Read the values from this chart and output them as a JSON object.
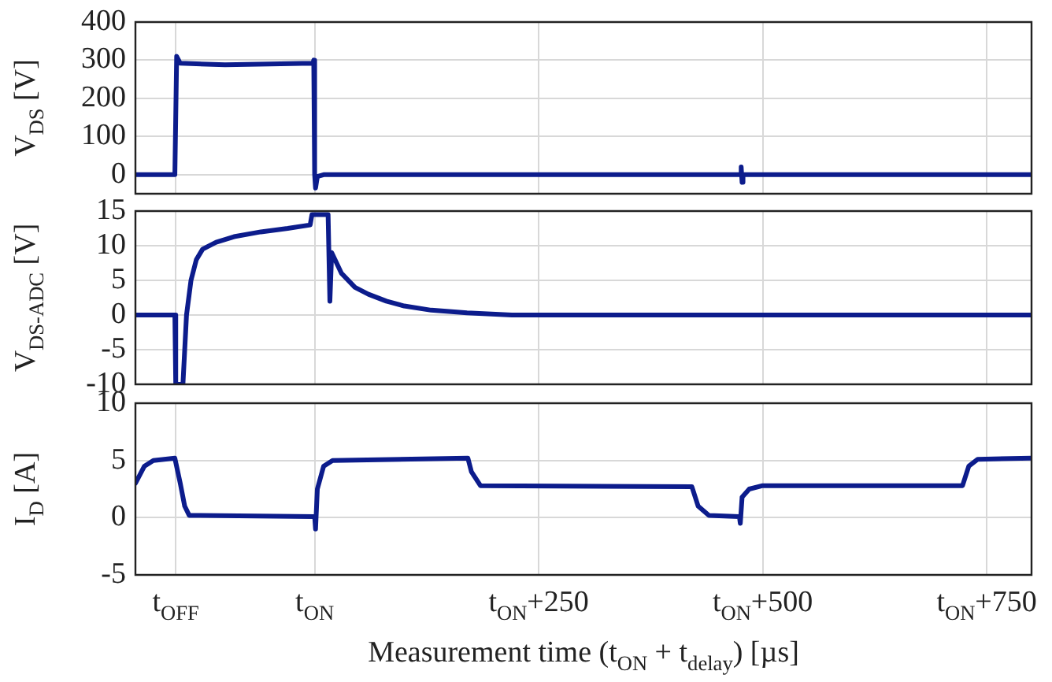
{
  "chart_data": [
    {
      "type": "line",
      "ylabel": "V$_{DS}$ [V]",
      "xlim": [
        -200,
        800
      ],
      "ylim": [
        -50,
        400
      ],
      "yticks": [
        0,
        100,
        200,
        300,
        400
      ],
      "xticks": [
        -155,
        0,
        250,
        500,
        750
      ],
      "grid": true,
      "tick_labels": "y",
      "series": [
        {
          "color": "#0c1c8c",
          "x": [
            -200,
            -156,
            -154,
            -150,
            -100,
            -50,
            -2,
            -1,
            0,
            1,
            3,
            10,
            475,
            476,
            477,
            478,
            800
          ],
          "values": [
            0,
            0,
            310,
            292,
            288,
            290,
            292,
            300,
            0,
            -35,
            -5,
            0,
            0,
            20,
            -20,
            0,
            0
          ]
        }
      ]
    },
    {
      "type": "line",
      "ylabel": "V$_{DS-ADC}$ [V]",
      "xlim": [
        -200,
        800
      ],
      "ylim": [
        -10,
        15
      ],
      "yticks": [
        -10,
        -5,
        0,
        5,
        10,
        15
      ],
      "xticks": [
        -155,
        0,
        250,
        500,
        750
      ],
      "grid": true,
      "tick_labels": "y",
      "series": [
        {
          "color": "#0c1c8c",
          "x": [
            -200,
            -156,
            -155,
            -147,
            -143,
            -138,
            -132,
            -125,
            -110,
            -90,
            -60,
            -30,
            -5,
            -3,
            15,
            17,
            19,
            30,
            45,
            60,
            80,
            100,
            130,
            170,
            220,
            800
          ],
          "values": [
            0,
            0,
            -10,
            -10,
            0,
            5,
            8,
            9.5,
            10.5,
            11.3,
            12,
            12.5,
            13,
            14.5,
            14.5,
            2,
            9,
            6,
            4,
            3,
            2,
            1.3,
            0.7,
            0.3,
            0,
            0
          ]
        }
      ]
    },
    {
      "type": "line",
      "ylabel": "I$_{D}$ [A]",
      "xlabel": "Measurement time (t$_{ON}$ + t$_{delay}$) [µs]",
      "xlim": [
        -200,
        800
      ],
      "ylim": [
        -5,
        10
      ],
      "yticks": [
        -5,
        0,
        5,
        10
      ],
      "xticks": [
        {
          "value": -155,
          "label": "t$_{OFF}$"
        },
        {
          "value": 0,
          "label": "t$_{ON}$"
        },
        {
          "value": 250,
          "label": "t$_{ON}$+250"
        },
        {
          "value": 500,
          "label": "t$_{ON}$+500"
        },
        {
          "value": 750,
          "label": "t$_{ON}$+750"
        }
      ],
      "grid": true,
      "series": [
        {
          "color": "#0c1c8c",
          "x": [
            -200,
            -190,
            -180,
            -156,
            -150,
            -145,
            -140,
            0,
            1,
            3,
            10,
            20,
            171,
            175,
            185,
            421,
            428,
            440,
            474,
            475,
            477,
            485,
            500,
            723,
            730,
            740,
            800
          ],
          "values": [
            3,
            4.5,
            5,
            5.2,
            3,
            1,
            0.2,
            0.1,
            -1,
            2.5,
            4.5,
            5,
            5.2,
            4,
            2.8,
            2.7,
            1,
            0.2,
            0.1,
            -0.5,
            1.8,
            2.5,
            2.8,
            2.8,
            4.5,
            5.1,
            5.2
          ]
        }
      ]
    }
  ]
}
